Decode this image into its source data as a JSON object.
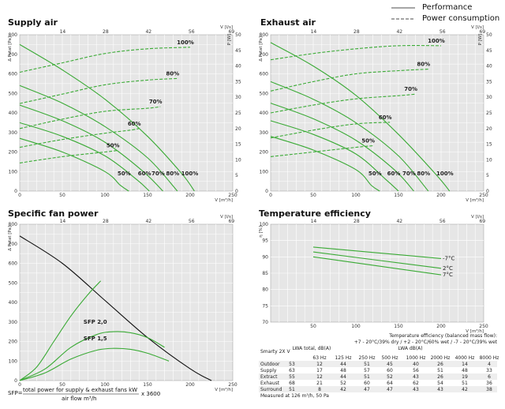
{
  "legend": {
    "performance": "Performance",
    "power": "Power consumption"
  },
  "colors": {
    "plot_bg": "#e6e6e6",
    "grid": "#ffffff",
    "green": "#3aaa35",
    "black": "#111111"
  },
  "chart_data": [
    {
      "type": "line",
      "title": "Supply air",
      "xlabel": "V [m³/h]",
      "x2label": "V [l/s]",
      "ylabel": "Δ Pstat [Pa]",
      "y2label": "P [W]",
      "xlim": [
        0,
        250
      ],
      "ylim": [
        0,
        800
      ],
      "y2lim": [
        0,
        50
      ],
      "xticks": [
        0,
        50,
        100,
        150,
        200,
        250
      ],
      "x2ticks": [
        14,
        28,
        42,
        56,
        69
      ],
      "yticks": [
        0,
        100,
        200,
        300,
        400,
        500,
        600,
        700,
        800
      ],
      "y2ticks": [
        0,
        5,
        10,
        15,
        20,
        25,
        30,
        35,
        40,
        45,
        50
      ],
      "performance_series": [
        {
          "name": "100%",
          "x": [
            0,
            50,
            100,
            150,
            190,
            205
          ],
          "y": [
            750,
            620,
            470,
            280,
            90,
            0
          ]
        },
        {
          "name": "80%",
          "x": [
            0,
            50,
            100,
            150,
            185
          ],
          "y": [
            540,
            450,
            330,
            170,
            0
          ]
        },
        {
          "name": "70%",
          "x": [
            0,
            50,
            100,
            145,
            168
          ],
          "y": [
            440,
            360,
            250,
            100,
            0
          ]
        },
        {
          "name": "60%",
          "x": [
            0,
            50,
            100,
            137,
            152
          ],
          "y": [
            350,
            280,
            180,
            60,
            0
          ]
        },
        {
          "name": "50%",
          "x": [
            0,
            50,
            100,
            118,
            128
          ],
          "y": [
            270,
            200,
            100,
            30,
            0
          ]
        }
      ],
      "power_series": [
        {
          "name": "100%",
          "x": [
            0,
            50,
            100,
            150,
            200
          ],
          "y": [
            38,
            41,
            44,
            45.5,
            46
          ]
        },
        {
          "name": "80%",
          "x": [
            0,
            50,
            100,
            150,
            185
          ],
          "y": [
            28,
            31,
            34,
            35.5,
            36
          ]
        },
        {
          "name": "70%",
          "x": [
            0,
            50,
            100,
            150,
            165
          ],
          "y": [
            20,
            23,
            25.5,
            26.5,
            27
          ]
        },
        {
          "name": "60%",
          "x": [
            0,
            50,
            100,
            130,
            140
          ],
          "y": [
            14,
            16.5,
            18.5,
            19.5,
            20
          ]
        },
        {
          "name": "50%",
          "x": [
            0,
            50,
            100,
            115
          ],
          "y": [
            9,
            11,
            12.5,
            13
          ]
        }
      ],
      "top_labels": [
        "100%",
        "80%",
        "70%",
        "60%",
        "50%"
      ],
      "bottom_labels": [
        "50%",
        "60%",
        "70%",
        "80%",
        "100%"
      ]
    },
    {
      "type": "line",
      "title": "Exhaust air",
      "xlabel": "V [m³/h]",
      "x2label": "V [l/s]",
      "ylabel": "Δ Pstat [Pa]",
      "y2label": "P [W]",
      "xlim": [
        0,
        250
      ],
      "ylim": [
        0,
        800
      ],
      "y2lim": [
        0,
        50
      ],
      "xticks": [
        0,
        50,
        100,
        150,
        200,
        250
      ],
      "x2ticks": [
        14,
        28,
        42,
        56,
        69
      ],
      "yticks": [
        0,
        100,
        200,
        300,
        400,
        500,
        600,
        700,
        800
      ],
      "y2ticks": [
        0,
        5,
        10,
        15,
        20,
        25,
        30,
        35,
        40,
        45,
        50
      ],
      "performance_series": [
        {
          "name": "100%",
          "x": [
            0,
            50,
            100,
            150,
            195,
            210
          ],
          "y": [
            760,
            640,
            490,
            290,
            80,
            0
          ]
        },
        {
          "name": "80%",
          "x": [
            0,
            50,
            100,
            150,
            185
          ],
          "y": [
            560,
            470,
            350,
            180,
            0
          ]
        },
        {
          "name": "70%",
          "x": [
            0,
            50,
            100,
            145,
            168
          ],
          "y": [
            450,
            370,
            260,
            110,
            0
          ]
        },
        {
          "name": "60%",
          "x": [
            0,
            50,
            100,
            135,
            150
          ],
          "y": [
            360,
            290,
            190,
            60,
            0
          ]
        },
        {
          "name": "50%",
          "x": [
            0,
            50,
            100,
            118,
            128
          ],
          "y": [
            280,
            210,
            110,
            30,
            0
          ]
        }
      ],
      "power_series": [
        {
          "name": "100%",
          "x": [
            0,
            50,
            100,
            150,
            200
          ],
          "y": [
            42,
            44,
            45.5,
            46.5,
            46.5
          ]
        },
        {
          "name": "80%",
          "x": [
            0,
            50,
            100,
            150,
            185
          ],
          "y": [
            32,
            35,
            37.5,
            38.5,
            39
          ]
        },
        {
          "name": "70%",
          "x": [
            0,
            50,
            100,
            150,
            170
          ],
          "y": [
            25,
            27.5,
            29.5,
            30.5,
            31
          ]
        },
        {
          "name": "60%",
          "x": [
            0,
            50,
            100,
            140
          ],
          "y": [
            17,
            19.5,
            21.5,
            22
          ]
        },
        {
          "name": "50%",
          "x": [
            0,
            50,
            100,
            120
          ],
          "y": [
            11,
            12.5,
            14,
            14.5
          ]
        }
      ],
      "top_labels": [
        "100%",
        "80%",
        "70%",
        "60%",
        "50%"
      ],
      "bottom_labels": [
        "50%",
        "60%",
        "70%",
        "80%",
        "100%"
      ]
    },
    {
      "type": "line",
      "title": "Specific fan power",
      "xlabel": "V [m³/h]",
      "x2label": "V [l/s]",
      "ylabel": "Δ Pstat [Pa]",
      "xlim": [
        0,
        250
      ],
      "ylim": [
        0,
        800
      ],
      "xticks": [
        0,
        50,
        100,
        150,
        200,
        250
      ],
      "x2ticks": [
        14,
        28,
        42,
        56,
        69
      ],
      "yticks": [
        0,
        100,
        200,
        300,
        400,
        500,
        600,
        700,
        800
      ],
      "system_curve": {
        "x": [
          0,
          50,
          100,
          150,
          200,
          225
        ],
        "y": [
          740,
          600,
          410,
          220,
          60,
          0
        ]
      },
      "sfp_series": [
        {
          "name": "SFP 2,0",
          "x": [
            0,
            30,
            60,
            90,
            110,
            130,
            150,
            170
          ],
          "y": [
            0,
            60,
            170,
            235,
            250,
            245,
            220,
            170
          ]
        },
        {
          "name": "SFP 1,5",
          "x": [
            0,
            30,
            60,
            90,
            110,
            130,
            150,
            175
          ],
          "y": [
            0,
            40,
            110,
            155,
            165,
            160,
            140,
            100
          ]
        },
        {
          "name": "",
          "x": [
            0,
            20,
            40,
            60,
            80,
            95
          ],
          "y": [
            0,
            70,
            200,
            330,
            440,
            510
          ]
        }
      ],
      "formula": {
        "prefix": "SFP=",
        "numerator": "total power for supply & exhaust fans kW",
        "denominator": "air flow m³/h",
        "suffix": "x 3600"
      }
    },
    {
      "type": "line",
      "title": "Temperature efficiency",
      "xlabel": "V [m³/h]",
      "x2label": "V [l/s]",
      "ylabel": "η [%]",
      "xlim": [
        0,
        250
      ],
      "ylim": [
        70,
        100
      ],
      "xticks": [
        50,
        100,
        150,
        200,
        250
      ],
      "x2ticks": [
        14,
        28,
        42,
        56,
        69
      ],
      "yticks": [
        70,
        75,
        80,
        85,
        90,
        95,
        100
      ],
      "series": [
        {
          "name": "-7°C",
          "x": [
            50,
            200
          ],
          "y": [
            93,
            89.5
          ]
        },
        {
          "name": "2°C",
          "x": [
            50,
            200
          ],
          "y": [
            91.5,
            86.5
          ]
        },
        {
          "name": "7°C",
          "x": [
            50,
            200
          ],
          "y": [
            90,
            84.5
          ]
        }
      ],
      "note": [
        "Temperature efficiency (balanced mass flow):",
        "+7 - 20°C/39% dry / +2 - 20°C/60% wet / -7 - 20°C/39% wet"
      ]
    }
  ],
  "table": {
    "model": "Smarty 2X V",
    "lwa_total_header": "LWA total, dB(A)",
    "lwa_header": "LWA dB(A)",
    "columns": [
      "63 Hz",
      "125 Hz",
      "250 Hz",
      "500 Hz",
      "1000 Hz",
      "2000 Hz",
      "4000 Hz",
      "8000 Hz"
    ],
    "rows": [
      {
        "name": "Outdoor",
        "total": "53",
        "values": [
          "12",
          "44",
          "51",
          "45",
          "40",
          "26",
          "14",
          "4"
        ]
      },
      {
        "name": "Supply",
        "total": "63",
        "values": [
          "17",
          "48",
          "57",
          "60",
          "56",
          "51",
          "48",
          "33"
        ]
      },
      {
        "name": "Extract",
        "total": "55",
        "values": [
          "12",
          "44",
          "51",
          "52",
          "43",
          "26",
          "19",
          "6"
        ]
      },
      {
        "name": "Exhaust",
        "total": "68",
        "values": [
          "21",
          "52",
          "60",
          "64",
          "62",
          "54",
          "51",
          "36"
        ]
      },
      {
        "name": "Surround",
        "total": "51",
        "values": [
          "8",
          "42",
          "47",
          "47",
          "43",
          "43",
          "42",
          "38"
        ]
      }
    ],
    "footnote": "Measured at 126 m³/h, 50 Pa"
  }
}
